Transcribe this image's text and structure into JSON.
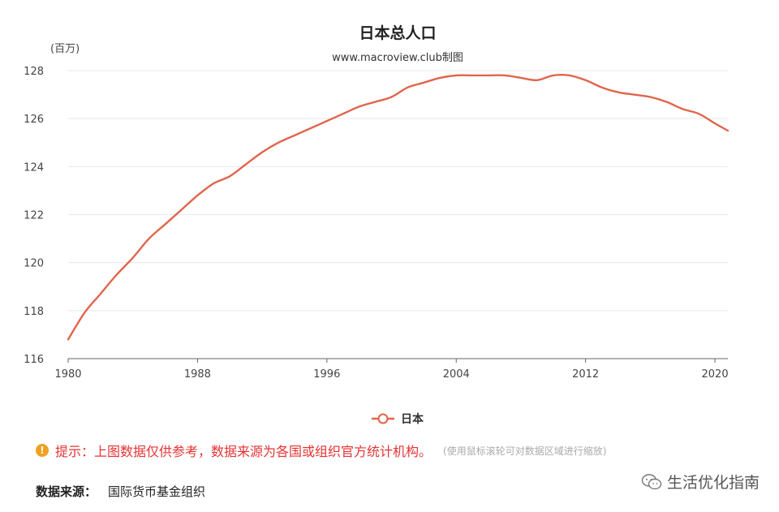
{
  "chart_data": {
    "type": "line",
    "title": "日本总人口",
    "subtitle": "www.macroview.club制图",
    "ylabel": "(百万)",
    "xlabel": "",
    "ylim": [
      116,
      128
    ],
    "yticks": [
      116,
      118,
      120,
      122,
      124,
      126,
      128
    ],
    "xlim": [
      1980,
      2020.8
    ],
    "xticks": [
      1980,
      1988,
      1996,
      2004,
      2012,
      2020
    ],
    "grid": true,
    "legend_position": "bottom-center",
    "series": [
      {
        "name": "日本",
        "color": "#e0654b",
        "x": [
          1980,
          1981,
          1982,
          1983,
          1984,
          1985,
          1986,
          1987,
          1988,
          1989,
          1990,
          1991,
          1992,
          1993,
          1994,
          1995,
          1996,
          1997,
          1998,
          1999,
          2000,
          2001,
          2002,
          2003,
          2004,
          2005,
          2006,
          2007,
          2008,
          2009,
          2010,
          2011,
          2012,
          2013,
          2014,
          2015,
          2016,
          2017,
          2018,
          2019,
          2020,
          2020.8
        ],
        "values": [
          116.8,
          117.9,
          118.7,
          119.5,
          120.2,
          121.0,
          121.6,
          122.2,
          122.8,
          123.3,
          123.6,
          124.1,
          124.6,
          125.0,
          125.3,
          125.6,
          125.9,
          126.2,
          126.5,
          126.7,
          126.9,
          127.3,
          127.5,
          127.7,
          127.8,
          127.8,
          127.8,
          127.8,
          127.7,
          127.6,
          127.8,
          127.8,
          127.6,
          127.3,
          127.1,
          127.0,
          126.9,
          126.7,
          126.4,
          126.2,
          125.8,
          125.5
        ]
      }
    ]
  },
  "hint": {
    "icon": "!",
    "text": "提示：上图数据仅供参考，数据来源为各国或组织官方统计机构。",
    "note": "(使用鼠标滚轮可对数据区域进行缩放)"
  },
  "source": {
    "label": "数据来源：",
    "value": "国际货币基金组织"
  },
  "watermark": {
    "text": "生活优化指南"
  }
}
